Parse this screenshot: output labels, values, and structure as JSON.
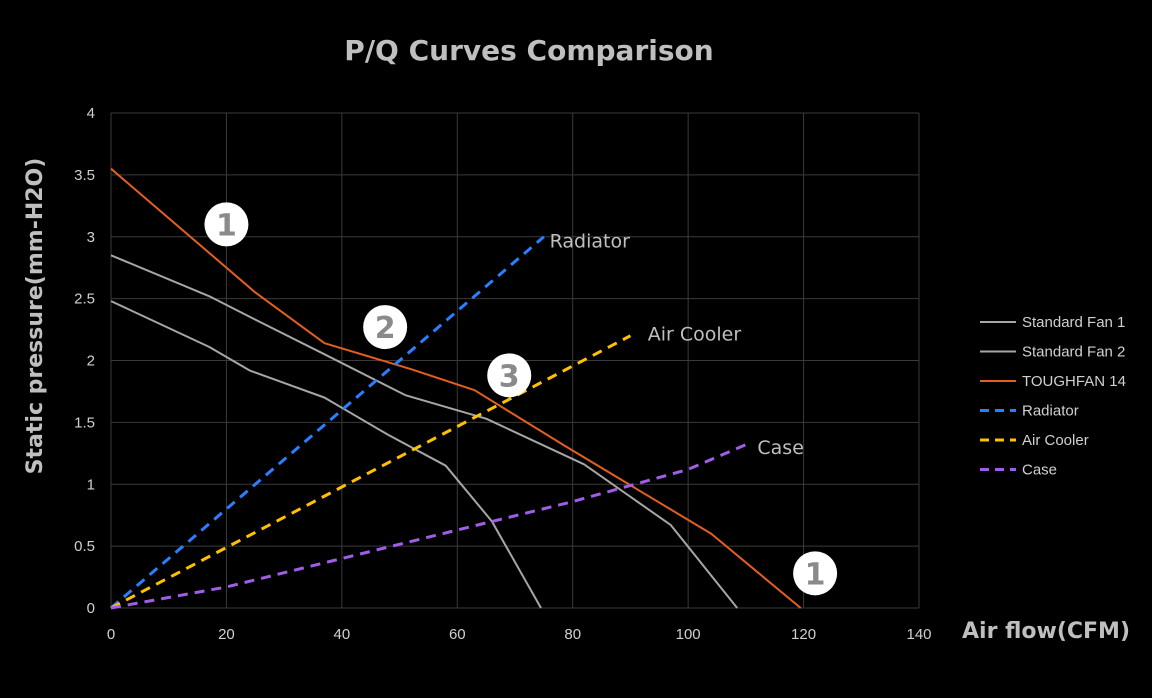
{
  "chart_data": {
    "type": "line",
    "title": "P/Q Curves Comparison",
    "xlabel": "Air flow(CFM)",
    "ylabel": "Static pressure(mm-H2O)",
    "xlim": [
      0,
      140
    ],
    "ylim": [
      0,
      4
    ],
    "xticks": [
      "0",
      "20",
      "40",
      "60",
      "80",
      "100",
      "120",
      "140"
    ],
    "yticks": [
      "0",
      "0.5",
      "1",
      "1.5",
      "2",
      "2.5",
      "3",
      "3.5",
      "4"
    ],
    "grid": true,
    "legend_position": "right",
    "series": [
      {
        "name": "Standard Fan 1",
        "color": "#a6a6a6",
        "dash": false,
        "points": [
          [
            0,
            2.85
          ],
          [
            17,
            2.52
          ],
          [
            25,
            2.33
          ],
          [
            37,
            2.05
          ],
          [
            51,
            1.72
          ],
          [
            65,
            1.53
          ],
          [
            82,
            1.16
          ],
          [
            97,
            0.67
          ],
          [
            108.5,
            0
          ]
        ]
      },
      {
        "name": "Standard Fan 2",
        "color": "#a6a6a6",
        "dash": false,
        "points": [
          [
            0,
            2.48
          ],
          [
            17,
            2.11
          ],
          [
            24,
            1.92
          ],
          [
            37,
            1.7
          ],
          [
            48,
            1.4
          ],
          [
            58,
            1.15
          ],
          [
            66,
            0.7
          ],
          [
            74.5,
            0
          ]
        ]
      },
      {
        "name": "TOUGHFAN 14",
        "color": "#e35e1f",
        "dash": false,
        "points": [
          [
            0,
            3.55
          ],
          [
            25,
            2.55
          ],
          [
            37,
            2.14
          ],
          [
            52,
            1.93
          ],
          [
            63,
            1.76
          ],
          [
            79,
            1.3
          ],
          [
            104,
            0.6
          ],
          [
            119.5,
            0
          ]
        ]
      },
      {
        "name": "Radiator",
        "color": "#2a7fff",
        "dash": true,
        "points": [
          [
            0,
            0
          ],
          [
            75,
            3.0
          ]
        ]
      },
      {
        "name": "Air Cooler",
        "color": "#ffc000",
        "dash": true,
        "points": [
          [
            0,
            0
          ],
          [
            90,
            2.2
          ]
        ]
      },
      {
        "name": "Case",
        "color": "#a05ee8",
        "dash": true,
        "points": [
          [
            0,
            0
          ],
          [
            20,
            0.17
          ],
          [
            40,
            0.4
          ],
          [
            60,
            0.63
          ],
          [
            80,
            0.86
          ],
          [
            100,
            1.12
          ],
          [
            110,
            1.32
          ]
        ]
      }
    ],
    "annotations": [
      {
        "text": "Radiator",
        "x": 76,
        "y": 2.97
      },
      {
        "text": "Air Cooler",
        "x": 93,
        "y": 2.22
      },
      {
        "text": "Case",
        "x": 112,
        "y": 1.3
      }
    ],
    "markers": [
      {
        "label": "1",
        "x": 20,
        "y": 3.1
      },
      {
        "label": "2",
        "x": 47.5,
        "y": 2.27
      },
      {
        "label": "3",
        "x": 69,
        "y": 1.88
      },
      {
        "label": "1",
        "x": 122,
        "y": 0.28
      }
    ]
  }
}
